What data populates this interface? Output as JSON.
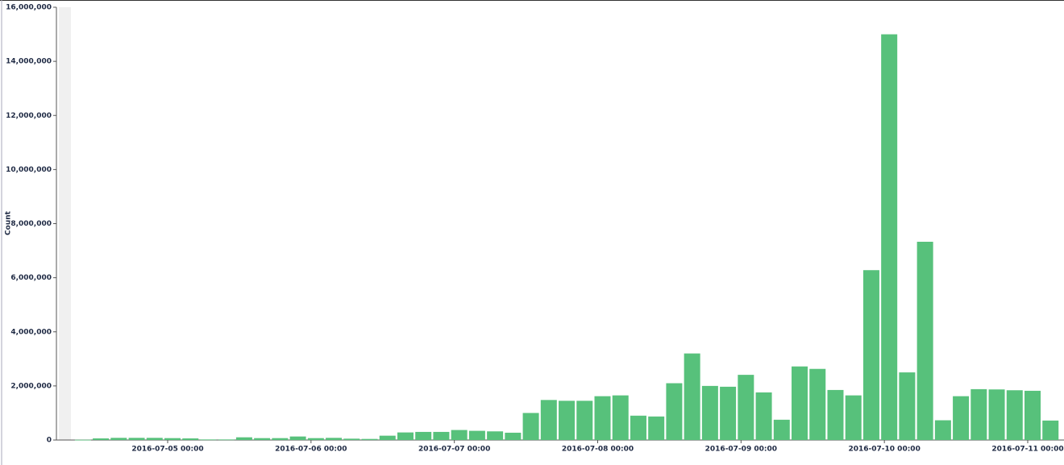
{
  "chart_data": {
    "type": "bar",
    "y_label": "Count",
    "color": "#57c17b",
    "x": [
      "2016-07-04 09:00",
      "2016-07-04 12:00",
      "2016-07-04 15:00",
      "2016-07-04 18:00",
      "2016-07-04 21:00",
      "2016-07-05 00:00",
      "2016-07-05 03:00",
      "2016-07-05 06:00",
      "2016-07-05 09:00",
      "2016-07-05 12:00",
      "2016-07-05 15:00",
      "2016-07-05 18:00",
      "2016-07-05 21:00",
      "2016-07-06 00:00",
      "2016-07-06 03:00",
      "2016-07-06 06:00",
      "2016-07-06 09:00",
      "2016-07-06 12:00",
      "2016-07-06 15:00",
      "2016-07-06 18:00",
      "2016-07-06 21:00",
      "2016-07-07 00:00",
      "2016-07-07 03:00",
      "2016-07-07 06:00",
      "2016-07-07 09:00",
      "2016-07-07 12:00",
      "2016-07-07 15:00",
      "2016-07-07 18:00",
      "2016-07-07 21:00",
      "2016-07-08 00:00",
      "2016-07-08 03:00",
      "2016-07-08 06:00",
      "2016-07-08 09:00",
      "2016-07-08 12:00",
      "2016-07-08 15:00",
      "2016-07-08 18:00",
      "2016-07-08 21:00",
      "2016-07-09 00:00",
      "2016-07-09 03:00",
      "2016-07-09 06:00",
      "2016-07-09 09:00",
      "2016-07-09 12:00",
      "2016-07-09 15:00",
      "2016-07-09 18:00",
      "2016-07-09 21:00",
      "2016-07-10 00:00",
      "2016-07-10 03:00",
      "2016-07-10 06:00",
      "2016-07-10 09:00",
      "2016-07-10 12:00",
      "2016-07-10 15:00",
      "2016-07-10 18:00",
      "2016-07-10 21:00",
      "2016-07-11 00:00",
      "2016-07-11 03:00"
    ],
    "values": [
      10000,
      60000,
      80000,
      80000,
      80000,
      70000,
      60000,
      20000,
      20000,
      100000,
      70000,
      70000,
      130000,
      70000,
      80000,
      50000,
      40000,
      160000,
      280000,
      300000,
      300000,
      370000,
      340000,
      320000,
      270000,
      1000000,
      1480000,
      1450000,
      1450000,
      1620000,
      1650000,
      900000,
      870000,
      2100000,
      3200000,
      2000000,
      1970000,
      2410000,
      1760000,
      750000,
      2720000,
      2630000,
      1850000,
      1650000,
      6280000,
      15000000,
      2500000,
      7330000,
      730000,
      1620000,
      1880000,
      1870000,
      1840000,
      1820000,
      720000
    ],
    "ylim": [
      0,
      16000000
    ],
    "yticks": [
      0,
      {
        "value": 2000000,
        "label": "2,000,000"
      },
      {
        "value": 4000000,
        "label": "4,000,000"
      },
      {
        "value": 6000000,
        "label": "6,000,000"
      },
      {
        "value": 8000000,
        "label": "8,000,000"
      },
      {
        "value": 10000000,
        "label": "10,000,000"
      },
      {
        "value": 12000000,
        "label": "12,000,000"
      },
      {
        "value": 14000000,
        "label": "14,000,000"
      },
      {
        "value": 16000000,
        "label": "16,000,000"
      }
    ],
    "xticks": [
      "2016-07-05 00:00",
      "2016-07-06 00:00",
      "2016-07-07 00:00",
      "2016-07-08 00:00",
      "2016-07-09 00:00",
      "2016-07-10 00:00",
      "2016-07-11 00:00"
    ]
  }
}
